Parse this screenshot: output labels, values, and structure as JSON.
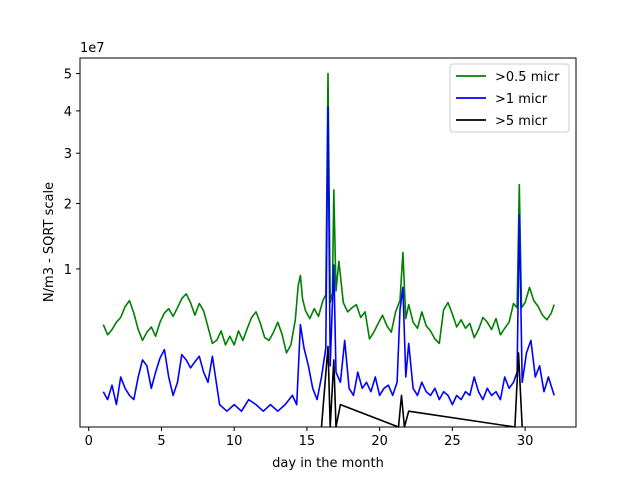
{
  "chart_data": {
    "type": "line",
    "title": "",
    "xlabel": "day in the month",
    "ylabel": "N/m3 - SQRT scale",
    "y_scale": "sqrt",
    "y_offset_text": "1e7",
    "xlim": [
      -0.6,
      33.5
    ],
    "ylim": [
      0,
      5.45
    ],
    "x_ticks": [
      0,
      5,
      10,
      15,
      20,
      25,
      30
    ],
    "x_tick_labels": [
      "0",
      "5",
      "10",
      "15",
      "20",
      "25",
      "30"
    ],
    "y_ticks": [
      1,
      2,
      3,
      4,
      5
    ],
    "y_tick_labels": [
      "1",
      "2",
      "3",
      "4",
      "5"
    ],
    "grid": false,
    "legend_position": "top-right",
    "series": [
      {
        "name": ">0.5 micr",
        "color": "#008000",
        "x": [
          1.0,
          1.3,
          1.6,
          1.9,
          2.2,
          2.5,
          2.8,
          3.1,
          3.4,
          3.7,
          4.0,
          4.3,
          4.6,
          4.9,
          5.2,
          5.5,
          5.8,
          6.1,
          6.4,
          6.7,
          7.0,
          7.3,
          7.6,
          7.9,
          8.2,
          8.5,
          8.8,
          9.1,
          9.4,
          9.7,
          10.0,
          10.3,
          10.6,
          10.9,
          11.2,
          11.5,
          11.8,
          12.1,
          12.4,
          12.7,
          13.0,
          13.3,
          13.6,
          13.9,
          14.2,
          14.4,
          14.55,
          14.7,
          14.9,
          15.2,
          15.5,
          15.8,
          16.1,
          16.3,
          16.45,
          16.6,
          16.75,
          16.85,
          17.0,
          17.2,
          17.5,
          17.8,
          18.1,
          18.4,
          18.7,
          19.0,
          19.3,
          19.6,
          19.9,
          20.2,
          20.5,
          20.8,
          21.1,
          21.4,
          21.6,
          21.8,
          22.0,
          22.3,
          22.6,
          22.9,
          23.2,
          23.5,
          23.8,
          24.1,
          24.4,
          24.7,
          25.0,
          25.3,
          25.6,
          25.9,
          26.2,
          26.5,
          26.8,
          27.1,
          27.4,
          27.7,
          28.0,
          28.3,
          28.6,
          28.9,
          29.2,
          29.45,
          29.6,
          29.75,
          30.0,
          30.3,
          30.6,
          30.9,
          31.2,
          31.5,
          31.8,
          32.0
        ],
        "y": [
          0.42,
          0.34,
          0.38,
          0.44,
          0.48,
          0.58,
          0.64,
          0.52,
          0.38,
          0.3,
          0.36,
          0.4,
          0.33,
          0.44,
          0.52,
          0.56,
          0.49,
          0.57,
          0.66,
          0.71,
          0.62,
          0.5,
          0.61,
          0.54,
          0.4,
          0.28,
          0.3,
          0.37,
          0.27,
          0.33,
          0.27,
          0.37,
          0.3,
          0.39,
          0.48,
          0.53,
          0.43,
          0.32,
          0.3,
          0.36,
          0.44,
          0.34,
          0.22,
          0.27,
          0.46,
          0.8,
          0.92,
          0.66,
          0.54,
          0.47,
          0.56,
          0.49,
          0.64,
          0.7,
          5.0,
          0.62,
          0.72,
          2.25,
          0.74,
          1.1,
          0.62,
          0.53,
          0.57,
          0.6,
          0.48,
          0.53,
          0.31,
          0.36,
          0.43,
          0.5,
          0.41,
          0.36,
          0.53,
          0.64,
          1.22,
          0.47,
          0.6,
          0.44,
          0.39,
          0.53,
          0.41,
          0.37,
          0.31,
          0.28,
          0.55,
          0.62,
          0.51,
          0.4,
          0.46,
          0.39,
          0.43,
          0.32,
          0.38,
          0.48,
          0.44,
          0.38,
          0.47,
          0.34,
          0.39,
          0.44,
          0.61,
          0.57,
          2.35,
          0.57,
          0.62,
          0.78,
          0.64,
          0.58,
          0.5,
          0.46,
          0.52,
          0.6
        ]
      },
      {
        "name": ">1 micr",
        "color": "#0000ff",
        "x": [
          1.0,
          1.3,
          1.6,
          1.9,
          2.2,
          2.5,
          2.8,
          3.1,
          3.4,
          3.7,
          4.0,
          4.3,
          4.6,
          4.9,
          5.2,
          5.5,
          5.8,
          6.1,
          6.4,
          6.7,
          7.0,
          7.3,
          7.6,
          7.9,
          8.2,
          8.5,
          9.0,
          9.5,
          10.0,
          10.5,
          11.0,
          11.5,
          12.0,
          12.5,
          13.0,
          13.5,
          14.0,
          14.3,
          14.55,
          14.8,
          15.1,
          15.4,
          15.7,
          16.0,
          16.3,
          16.45,
          16.6,
          16.85,
          17.0,
          17.3,
          17.6,
          17.9,
          18.2,
          18.5,
          18.8,
          19.1,
          19.4,
          19.7,
          20.0,
          20.3,
          20.6,
          20.9,
          21.2,
          21.4,
          21.6,
          21.8,
          22.0,
          22.3,
          22.6,
          22.9,
          23.2,
          23.5,
          23.8,
          24.1,
          24.4,
          24.7,
          25.0,
          25.3,
          25.6,
          25.9,
          26.2,
          26.5,
          26.8,
          27.1,
          27.4,
          27.7,
          28.0,
          28.3,
          28.6,
          28.9,
          29.2,
          29.45,
          29.6,
          29.8,
          30.1,
          30.4,
          30.7,
          31.0,
          31.3,
          31.6,
          32.0
        ],
        "y": [
          0.05,
          0.03,
          0.07,
          0.02,
          0.1,
          0.06,
          0.04,
          0.03,
          0.1,
          0.18,
          0.15,
          0.06,
          0.12,
          0.19,
          0.24,
          0.1,
          0.04,
          0.08,
          0.21,
          0.18,
          0.14,
          0.17,
          0.2,
          0.12,
          0.08,
          0.2,
          0.02,
          0.01,
          0.02,
          0.01,
          0.03,
          0.02,
          0.01,
          0.02,
          0.01,
          0.02,
          0.04,
          0.02,
          0.42,
          0.25,
          0.15,
          0.06,
          0.03,
          0.1,
          0.25,
          4.1,
          0.15,
          1.05,
          0.12,
          0.08,
          0.3,
          0.06,
          0.04,
          0.12,
          0.06,
          0.08,
          0.05,
          0.1,
          0.04,
          0.06,
          0.07,
          0.04,
          0.08,
          0.55,
          0.78,
          0.1,
          0.28,
          0.06,
          0.04,
          0.08,
          0.05,
          0.04,
          0.06,
          0.03,
          0.05,
          0.04,
          0.02,
          0.04,
          0.03,
          0.05,
          0.04,
          0.1,
          0.05,
          0.03,
          0.06,
          0.04,
          0.05,
          0.03,
          0.1,
          0.06,
          0.08,
          0.12,
          1.8,
          0.08,
          0.22,
          0.3,
          0.1,
          0.15,
          0.05,
          0.1,
          0.04
        ]
      },
      {
        "name": ">5 micr",
        "color": "#000000",
        "x": [
          16.0,
          16.45,
          16.6,
          16.85,
          17.0,
          17.3,
          21.3,
          21.5,
          21.7,
          22.0,
          29.3,
          29.55,
          29.8
        ],
        "y": [
          0.0,
          0.26,
          0.0,
          0.18,
          0.0,
          0.02,
          0.0,
          0.04,
          0.0,
          0.01,
          0.0,
          0.22,
          0.0
        ]
      }
    ]
  }
}
